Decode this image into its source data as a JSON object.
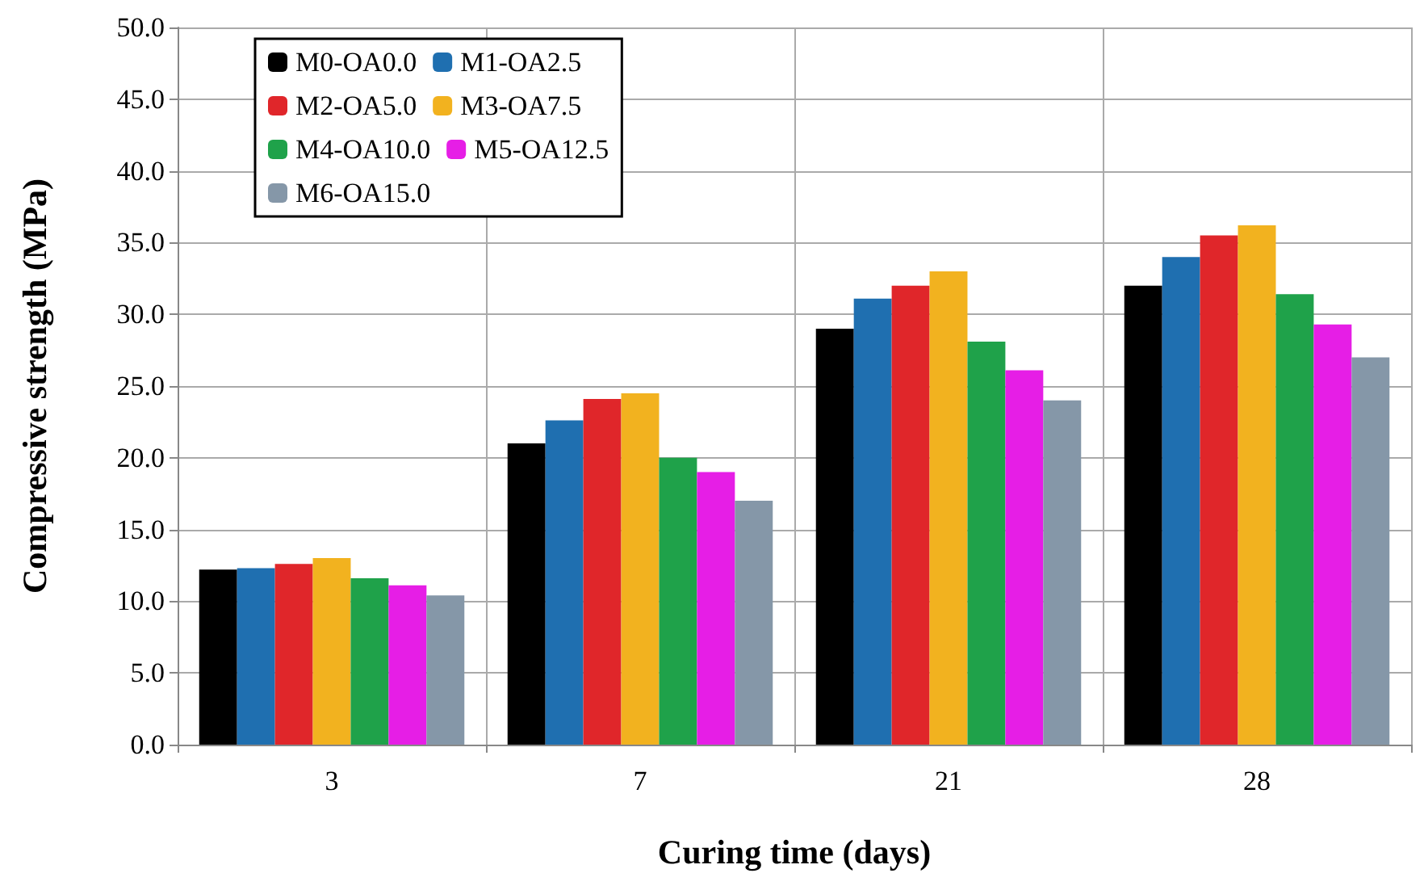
{
  "chart_data": {
    "type": "bar",
    "xlabel": "Curing time (days)",
    "ylabel": "Compressive strength (MPa)",
    "categories": [
      "3",
      "7",
      "21",
      "28"
    ],
    "series": [
      {
        "name": "M0-OA0.0",
        "color": "#000000",
        "values": [
          12.2,
          21.0,
          29.0,
          32.0
        ]
      },
      {
        "name": "M1-OA2.5",
        "color": "#1f6fb0",
        "values": [
          12.3,
          22.6,
          31.1,
          34.0
        ]
      },
      {
        "name": "M2-OA5.0",
        "color": "#e0262a",
        "values": [
          12.6,
          24.1,
          32.0,
          35.5
        ]
      },
      {
        "name": "M3-OA7.5",
        "color": "#f2b21f",
        "values": [
          13.0,
          24.5,
          33.0,
          36.2
        ]
      },
      {
        "name": "M4-OA10.0",
        "color": "#1fa24a",
        "values": [
          11.6,
          20.0,
          28.1,
          31.4
        ]
      },
      {
        "name": "M5-OA12.5",
        "color": "#e61ee6",
        "values": [
          11.1,
          19.0,
          26.1,
          29.3
        ]
      },
      {
        "name": "M6-OA15.0",
        "color": "#8597a8",
        "values": [
          10.4,
          17.0,
          24.0,
          27.0
        ]
      }
    ],
    "ylim": [
      0,
      50
    ],
    "yticks": [
      {
        "value": 0,
        "label": "0.0"
      },
      {
        "value": 5,
        "label": "5.0"
      },
      {
        "value": 10,
        "label": "10.0"
      },
      {
        "value": 15,
        "label": "15.0"
      },
      {
        "value": 20,
        "label": "20.0"
      },
      {
        "value": 25,
        "label": "25.0"
      },
      {
        "value": 30,
        "label": "30.0"
      },
      {
        "value": 35,
        "label": "35.0"
      },
      {
        "value": 40,
        "label": "40.0"
      },
      {
        "value": 45,
        "label": "45.0"
      },
      {
        "value": 50,
        "label": "50.0"
      }
    ],
    "grid": true,
    "legend": "top left"
  }
}
